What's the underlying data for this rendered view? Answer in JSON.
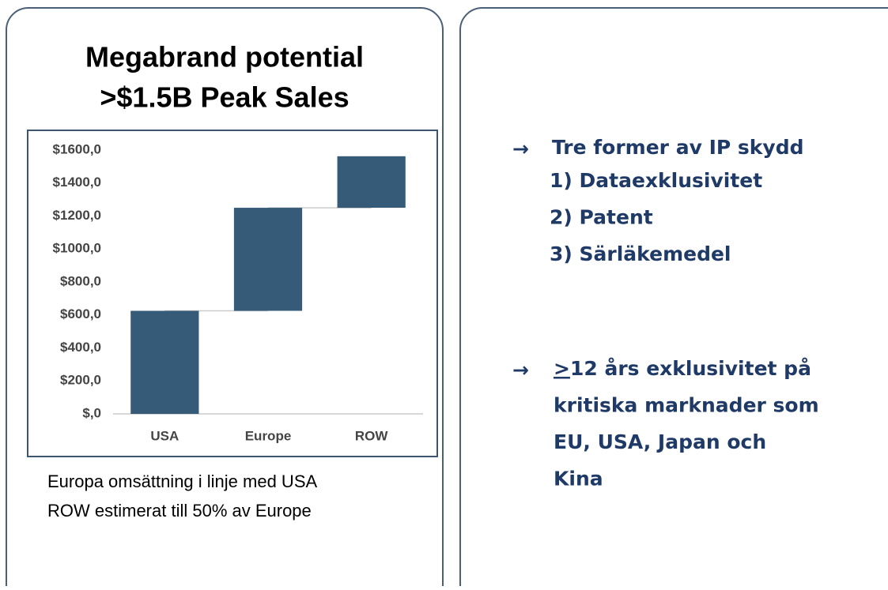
{
  "title": [
    "Megabrand potential",
    ">$1.5B Peak Sales"
  ],
  "chart_data": {
    "type": "waterfall",
    "categories": [
      "USA",
      "Europe",
      "ROW"
    ],
    "values": [
      625,
      625,
      312.5
    ],
    "color": "#365b78",
    "ylim": [
      0,
      1600
    ],
    "yticks": [
      {
        "value": 0,
        "label": "$,0"
      },
      {
        "value": 200,
        "label": "$200,0"
      },
      {
        "value": 400,
        "label": "$400,0"
      },
      {
        "value": 600,
        "label": "$600,0"
      },
      {
        "value": 800,
        "label": "$800,0"
      },
      {
        "value": 1000,
        "label": "$1000,0"
      },
      {
        "value": 1200,
        "label": "$1200,0"
      },
      {
        "value": 1400,
        "label": "$1400,0"
      },
      {
        "value": 1600,
        "label": "$1600,0"
      }
    ],
    "grid": false
  },
  "caption": [
    "Europa omsättning i linje med USA",
    "ROW estimerat till 50% av Europe"
  ],
  "bullets": [
    {
      "arrow": "→",
      "heading": "Tre former av IP skydd",
      "items": [
        "1) Dataexklusivitet",
        "2) Patent",
        "3) Särläkemedel"
      ]
    },
    {
      "arrow": "→",
      "prefix": ">",
      "lines": [
        "12 års exklusivitet på",
        "kritiska marknader som",
        "EU, USA, Japan och",
        "Kina"
      ]
    }
  ]
}
